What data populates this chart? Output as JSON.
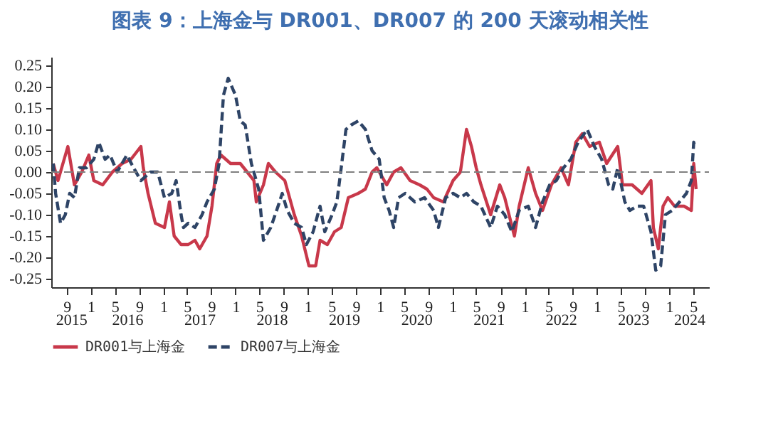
{
  "chart_data": {
    "type": "line",
    "title": "图表 9：上海金与 DR001、DR007 的 200 天滚动相关性",
    "xlim": [
      "2015-06-15",
      "2024-07-20"
    ],
    "xticks": [
      {
        "value": "2015-09",
        "label": "9"
      },
      {
        "value": "2016-01",
        "label": "1"
      },
      {
        "value": "2016-05",
        "label": "5"
      },
      {
        "value": "2016-09",
        "label": "9"
      },
      {
        "value": "2017-01",
        "label": "1"
      },
      {
        "value": "2017-05",
        "label": "5"
      },
      {
        "value": "2017-09",
        "label": "9"
      },
      {
        "value": "2018-01",
        "label": "1"
      },
      {
        "value": "2018-05",
        "label": "5"
      },
      {
        "value": "2018-09",
        "label": "9"
      },
      {
        "value": "2019-01",
        "label": "1"
      },
      {
        "value": "2019-05",
        "label": "5"
      },
      {
        "value": "2019-09",
        "label": "9"
      },
      {
        "value": "2020-01",
        "label": "1"
      },
      {
        "value": "2020-05",
        "label": "5"
      },
      {
        "value": "2020-09",
        "label": "9"
      },
      {
        "value": "2021-01",
        "label": "1"
      },
      {
        "value": "2021-05",
        "label": "5"
      },
      {
        "value": "2021-09",
        "label": "9"
      },
      {
        "value": "2022-01",
        "label": "1"
      },
      {
        "value": "2022-05",
        "label": "5"
      },
      {
        "value": "2022-09",
        "label": "9"
      },
      {
        "value": "2023-01",
        "label": "1"
      },
      {
        "value": "2023-05",
        "label": "5"
      },
      {
        "value": "2023-09",
        "label": "9"
      },
      {
        "value": "2024-01",
        "label": "1"
      },
      {
        "value": "2024-05",
        "label": "5"
      }
    ],
    "annotations": [
      "2015",
      "2016",
      "2017",
      "2018",
      "2019",
      "2020",
      "2021",
      "2022",
      "2023",
      "2024"
    ],
    "ylim": [
      -0.27,
      0.27
    ],
    "yticks": [
      {
        "value": -0.25,
        "label": "-0.25"
      },
      {
        "value": -0.2,
        "label": "-0.20"
      },
      {
        "value": -0.15,
        "label": "-0.15"
      },
      {
        "value": -0.1,
        "label": "-0.10"
      },
      {
        "value": -0.05,
        "label": "-0.05"
      },
      {
        "value": 0,
        "label": "0.00"
      },
      {
        "value": 0.05,
        "label": "0.05"
      },
      {
        "value": 0.1,
        "label": "0.10"
      },
      {
        "value": 0.15,
        "label": "0.15"
      },
      {
        "value": 0.2,
        "label": "0.20"
      },
      {
        "value": 0.25,
        "label": "0.25"
      }
    ],
    "grid": false,
    "legend": "bottom",
    "ref_lines": [
      {
        "axis": "y",
        "value": 0,
        "color": "#808080",
        "line_style": "dashed"
      }
    ],
    "series": [
      {
        "name": "DR001与上海金",
        "color": "#c8384a",
        "line_style": "solid",
        "x": [
          "2015-06-25",
          "2015-07-19",
          "2015-09-07",
          "2015-10-10",
          "2015-11-16",
          "2015-12-22",
          "2016-01-16",
          "2016-03-01",
          "2016-04-19",
          "2016-06-07",
          "2016-07-22",
          "2016-09-10",
          "2016-09-22",
          "2016-10-16",
          "2016-11-22",
          "2017-01-07",
          "2017-02-01",
          "2017-02-25",
          "2017-04-01",
          "2017-05-07",
          "2017-06-10",
          "2017-07-04",
          "2017-08-10",
          "2017-09-04",
          "2017-09-28",
          "2017-10-19",
          "2017-12-07",
          "2018-01-25",
          "2018-03-01",
          "2018-04-04",
          "2018-04-16",
          "2018-05-22",
          "2018-06-16",
          "2018-07-22",
          "2018-09-07",
          "2018-10-01",
          "2018-10-25",
          "2018-12-01",
          "2019-01-07",
          "2019-02-10",
          "2019-03-04",
          "2019-04-10",
          "2019-05-16",
          "2019-06-19",
          "2019-07-25",
          "2019-09-13",
          "2019-10-19",
          "2019-11-22",
          "2019-12-16",
          "2020-02-04",
          "2020-03-10",
          "2020-04-16",
          "2020-06-01",
          "2020-07-19",
          "2020-08-25",
          "2020-09-28",
          "2020-11-16",
          "2021-01-04",
          "2021-02-10",
          "2021-03-13",
          "2021-04-07",
          "2021-05-01",
          "2021-05-25",
          "2021-07-13",
          "2021-08-28",
          "2021-09-22",
          "2021-11-10",
          "2021-12-04",
          "2022-01-19",
          "2022-02-25",
          "2022-04-01",
          "2022-05-16",
          "2022-07-04",
          "2022-08-10",
          "2022-09-16",
          "2022-10-19",
          "2022-11-25",
          "2023-01-13",
          "2023-02-19",
          "2023-04-16",
          "2023-05-10",
          "2023-06-28",
          "2023-08-16",
          "2023-10-01",
          "2023-10-13",
          "2023-11-07",
          "2023-12-01",
          "2023-12-25",
          "2024-01-28",
          "2024-03-16",
          "2024-04-22",
          "2024-05-04",
          "2024-05-16"
        ],
        "values": [
          0.02,
          -0.02,
          0.06,
          -0.03,
          0.0,
          0.04,
          -0.02,
          -0.03,
          0.0,
          0.02,
          0.03,
          0.06,
          0.01,
          -0.05,
          -0.12,
          -0.13,
          -0.07,
          -0.15,
          -0.17,
          -0.17,
          -0.16,
          -0.18,
          -0.15,
          -0.08,
          0.02,
          0.04,
          0.02,
          0.02,
          0.0,
          -0.02,
          -0.07,
          -0.03,
          0.02,
          0.0,
          -0.02,
          -0.06,
          -0.1,
          -0.15,
          -0.22,
          -0.22,
          -0.16,
          -0.17,
          -0.14,
          -0.13,
          -0.06,
          -0.05,
          -0.04,
          0.0,
          0.01,
          -0.03,
          0.0,
          0.01,
          -0.02,
          -0.03,
          -0.04,
          -0.06,
          -0.07,
          -0.02,
          0.0,
          0.1,
          0.06,
          0.01,
          -0.03,
          -0.1,
          -0.03,
          -0.06,
          -0.15,
          -0.08,
          0.01,
          -0.05,
          -0.09,
          -0.03,
          0.01,
          -0.03,
          0.07,
          0.09,
          0.06,
          0.07,
          0.02,
          0.06,
          -0.03,
          -0.03,
          -0.05,
          -0.02,
          -0.13,
          -0.18,
          -0.08,
          -0.06,
          -0.08,
          -0.08,
          -0.09,
          0.02,
          -0.04
        ]
      },
      {
        "name": "DR007与上海金",
        "color": "#2e4466",
        "line_style": "dashed",
        "x": [
          "2015-06-25",
          "2015-07-07",
          "2015-08-01",
          "2015-08-25",
          "2015-09-16",
          "2015-10-10",
          "2015-11-04",
          "2015-12-10",
          "2016-01-16",
          "2016-02-10",
          "2016-03-13",
          "2016-04-07",
          "2016-05-13",
          "2016-07-01",
          "2016-08-04",
          "2016-09-10",
          "2016-10-28",
          "2016-12-04",
          "2017-01-07",
          "2017-02-13",
          "2017-03-07",
          "2017-04-01",
          "2017-04-13",
          "2017-05-07",
          "2017-06-10",
          "2017-07-16",
          "2017-08-10",
          "2017-09-16",
          "2017-10-10",
          "2017-11-01",
          "2017-11-25",
          "2018-01-01",
          "2018-01-25",
          "2018-02-19",
          "2018-03-22",
          "2018-04-28",
          "2018-05-22",
          "2018-06-28",
          "2018-08-04",
          "2018-08-25",
          "2018-09-19",
          "2018-10-25",
          "2018-12-01",
          "2018-12-25",
          "2019-01-28",
          "2019-03-04",
          "2019-03-28",
          "2019-05-04",
          "2019-05-28",
          "2019-06-19",
          "2019-07-13",
          "2019-08-07",
          "2019-09-13",
          "2019-10-19",
          "2019-11-22",
          "2019-12-28",
          "2020-01-22",
          "2020-02-16",
          "2020-03-10",
          "2020-04-04",
          "2020-05-07",
          "2020-06-25",
          "2020-08-13",
          "2020-09-28",
          "2020-10-22",
          "2020-11-28",
          "2021-01-04",
          "2021-02-10",
          "2021-03-13",
          "2021-04-19",
          "2021-05-25",
          "2021-07-13",
          "2021-08-16",
          "2021-09-22",
          "2021-10-28",
          "2021-12-04",
          "2022-01-19",
          "2022-02-25",
          "2022-04-01",
          "2022-05-07",
          "2022-06-10",
          "2022-07-16",
          "2022-08-22",
          "2022-09-28",
          "2022-11-13",
          "2022-12-19",
          "2023-01-25",
          "2023-03-01",
          "2023-03-22",
          "2023-04-16",
          "2023-05-22",
          "2023-06-16",
          "2023-07-22",
          "2023-08-25",
          "2023-10-01",
          "2023-10-25",
          "2023-11-19",
          "2023-12-13",
          "2024-01-16",
          "2024-02-22",
          "2024-03-28",
          "2024-04-22",
          "2024-05-04",
          "2024-05-10"
        ],
        "values": [
          0.02,
          -0.05,
          -0.12,
          -0.1,
          -0.05,
          -0.06,
          0.01,
          0.01,
          0.03,
          0.07,
          0.03,
          0.04,
          0.0,
          0.04,
          0.01,
          -0.02,
          0.0,
          0.0,
          -0.06,
          -0.05,
          -0.02,
          -0.1,
          -0.13,
          -0.12,
          -0.13,
          -0.1,
          -0.07,
          -0.04,
          0.02,
          0.18,
          0.22,
          0.18,
          0.12,
          0.11,
          0.02,
          -0.04,
          -0.16,
          -0.13,
          -0.08,
          -0.05,
          -0.09,
          -0.12,
          -0.13,
          -0.17,
          -0.14,
          -0.08,
          -0.14,
          -0.1,
          -0.07,
          0.01,
          0.1,
          0.11,
          0.12,
          0.1,
          0.05,
          0.03,
          -0.06,
          -0.09,
          -0.13,
          -0.06,
          -0.05,
          -0.07,
          -0.06,
          -0.09,
          -0.13,
          -0.06,
          -0.05,
          -0.06,
          -0.05,
          -0.07,
          -0.08,
          -0.13,
          -0.08,
          -0.1,
          -0.14,
          -0.09,
          -0.08,
          -0.13,
          -0.07,
          -0.03,
          -0.02,
          0.01,
          0.03,
          0.07,
          0.1,
          0.06,
          0.03,
          -0.03,
          -0.04,
          0.01,
          -0.07,
          -0.09,
          -0.08,
          -0.08,
          -0.14,
          -0.23,
          -0.22,
          -0.1,
          -0.09,
          -0.07,
          -0.05,
          -0.02,
          0.07,
          0.06
        ]
      }
    ]
  }
}
